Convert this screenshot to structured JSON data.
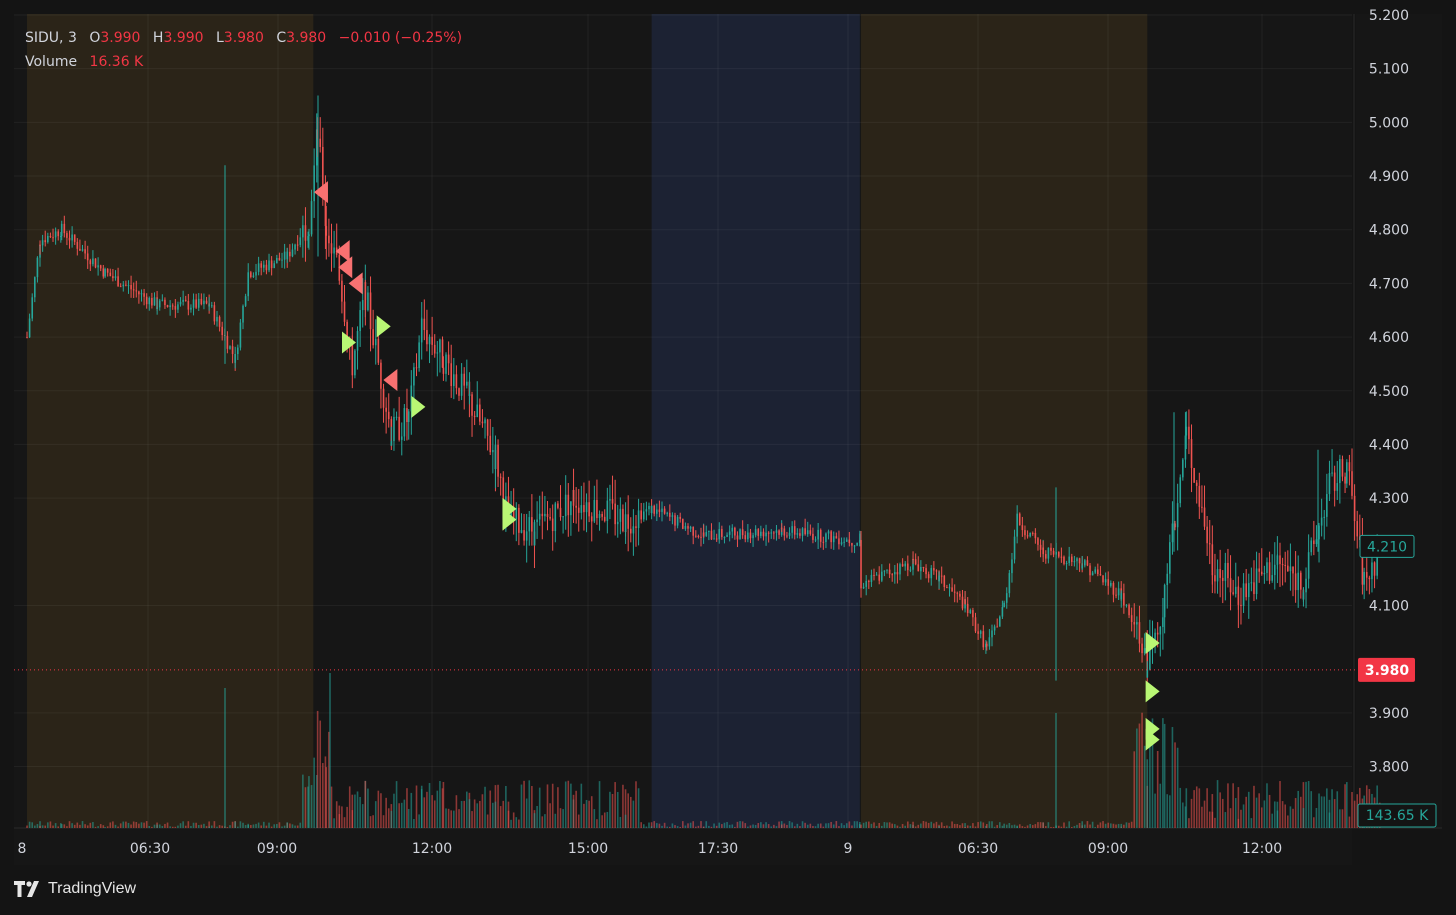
{
  "legend": {
    "symbol": "SIDU",
    "interval": "3",
    "open_label": "O",
    "open": "3.990",
    "high_label": "H",
    "high": "3.990",
    "low_label": "L",
    "low": "3.980",
    "close_label": "C",
    "close": "3.980",
    "change": "−0.010 (−0.25%)",
    "volume_label": "Volume",
    "volume": "16.36 K"
  },
  "brand": "TradingView",
  "colors": {
    "up": "#26a69a",
    "down": "#ef5350",
    "premarket": "#2b2418",
    "afterhours": "#1c2233",
    "buy_marker": "#b9f774",
    "sell_marker": "#f87171",
    "last_price": "#f23645"
  },
  "chart_data": {
    "type": "candlestick",
    "symbol": "SIDU",
    "interval": "3",
    "ylim": [
      3.72,
      5.2
    ],
    "y_ticks": [
      "5.200",
      "5.100",
      "5.000",
      "4.900",
      "4.800",
      "4.700",
      "4.600",
      "4.500",
      "4.400",
      "4.300",
      "4.100",
      "3.900",
      "3.800"
    ],
    "x_ticks": [
      "8",
      "06:30",
      "09:00",
      "12:00",
      "15:00",
      "17:30",
      "9",
      "06:30",
      "09:00",
      "12:00"
    ],
    "last_price_label": "3.980",
    "last_price": 3.98,
    "current_price_label": "4.210",
    "current_price": 4.21,
    "volume_label": "143.65 K",
    "price_path": [
      [
        "day1 04:00",
        4.6
      ],
      [
        "day1 04:15",
        4.78
      ],
      [
        "day1 04:40",
        4.8
      ],
      [
        "day1 05:30",
        4.72
      ],
      [
        "day1 06:30",
        4.66
      ],
      [
        "day1 07:30",
        4.66
      ],
      [
        "day1 08:00",
        4.56
      ],
      [
        "day1 08:15",
        4.72
      ],
      [
        "day1 09:00",
        4.75
      ],
      [
        "day1 09:25",
        4.82
      ],
      [
        "day1 09:35",
        4.98
      ],
      [
        "day1 09:45",
        4.8
      ],
      [
        "day1 10:00",
        4.72
      ],
      [
        "day1 10:15",
        4.55
      ],
      [
        "day1 10:30",
        4.68
      ],
      [
        "day1 11:00",
        4.42
      ],
      [
        "day1 11:20",
        4.45
      ],
      [
        "day1 11:35",
        4.62
      ],
      [
        "day1 12:00",
        4.56
      ],
      [
        "day1 12:30",
        4.48
      ],
      [
        "day1 13:00",
        4.38
      ],
      [
        "day1 13:15",
        4.26
      ],
      [
        "day1 13:45",
        4.24
      ],
      [
        "day1 14:30",
        4.3
      ],
      [
        "day1 15:30",
        4.26
      ],
      [
        "day1 16:00",
        4.28
      ],
      [
        "day1 17:00",
        4.23
      ],
      [
        "day1 18:30",
        4.24
      ],
      [
        "day1 20:00",
        4.22
      ],
      [
        "day2 04:00",
        4.14
      ],
      [
        "day2 05:00",
        4.18
      ],
      [
        "day2 05:30",
        4.15
      ],
      [
        "day2 06:00",
        4.1
      ],
      [
        "day2 06:25",
        4.02
      ],
      [
        "day2 06:45",
        4.1
      ],
      [
        "day2 07:00",
        4.26
      ],
      [
        "day2 07:30",
        4.2
      ],
      [
        "day2 08:15",
        4.18
      ],
      [
        "day2 09:00",
        4.12
      ],
      [
        "day2 09:30",
        3.99
      ],
      [
        "day2 09:50",
        4.12
      ],
      [
        "day2 10:15",
        4.42
      ],
      [
        "day2 10:45",
        4.18
      ],
      [
        "day2 11:15",
        4.12
      ],
      [
        "day2 12:00",
        4.18
      ],
      [
        "day2 12:30",
        4.14
      ],
      [
        "day2 13:00",
        4.32
      ],
      [
        "day2 13:20",
        4.36
      ],
      [
        "day2 13:40",
        4.14
      ],
      [
        "day2 14:00",
        4.21
      ]
    ],
    "trade_markers": [
      {
        "side": "sell",
        "time": "day1 09:40",
        "price": 4.87
      },
      {
        "side": "sell",
        "time": "day1 10:05",
        "price": 4.76
      },
      {
        "side": "sell",
        "time": "day1 10:08",
        "price": 4.73
      },
      {
        "side": "sell",
        "time": "day1 10:20",
        "price": 4.7
      },
      {
        "side": "buy",
        "time": "day1 10:10",
        "price": 4.59
      },
      {
        "side": "buy",
        "time": "day1 10:50",
        "price": 4.62
      },
      {
        "side": "sell",
        "time": "day1 11:00",
        "price": 4.52
      },
      {
        "side": "buy",
        "time": "day1 11:30",
        "price": 4.47
      },
      {
        "side": "buy",
        "time": "day1 13:15",
        "price": 4.28
      },
      {
        "side": "buy",
        "time": "day1 13:15",
        "price": 4.26
      },
      {
        "side": "buy",
        "time": "day2 09:35",
        "price": 4.03
      },
      {
        "side": "buy",
        "time": "day2 09:35",
        "price": 3.94
      },
      {
        "side": "buy",
        "time": "day2 09:35",
        "price": 3.87
      },
      {
        "side": "buy",
        "time": "day2 09:35",
        "price": 3.85
      }
    ],
    "sessions": [
      {
        "type": "premarket",
        "from": "day1 04:00",
        "to": "day1 09:30"
      },
      {
        "type": "regular",
        "from": "day1 09:30",
        "to": "day1 16:00"
      },
      {
        "type": "afterhours",
        "from": "day1 16:00",
        "to": "day1 20:00"
      },
      {
        "type": "premarket",
        "from": "day2 04:00",
        "to": "day2 09:30"
      },
      {
        "type": "regular",
        "from": "day2 09:30",
        "to": "day2 14:00"
      }
    ]
  }
}
